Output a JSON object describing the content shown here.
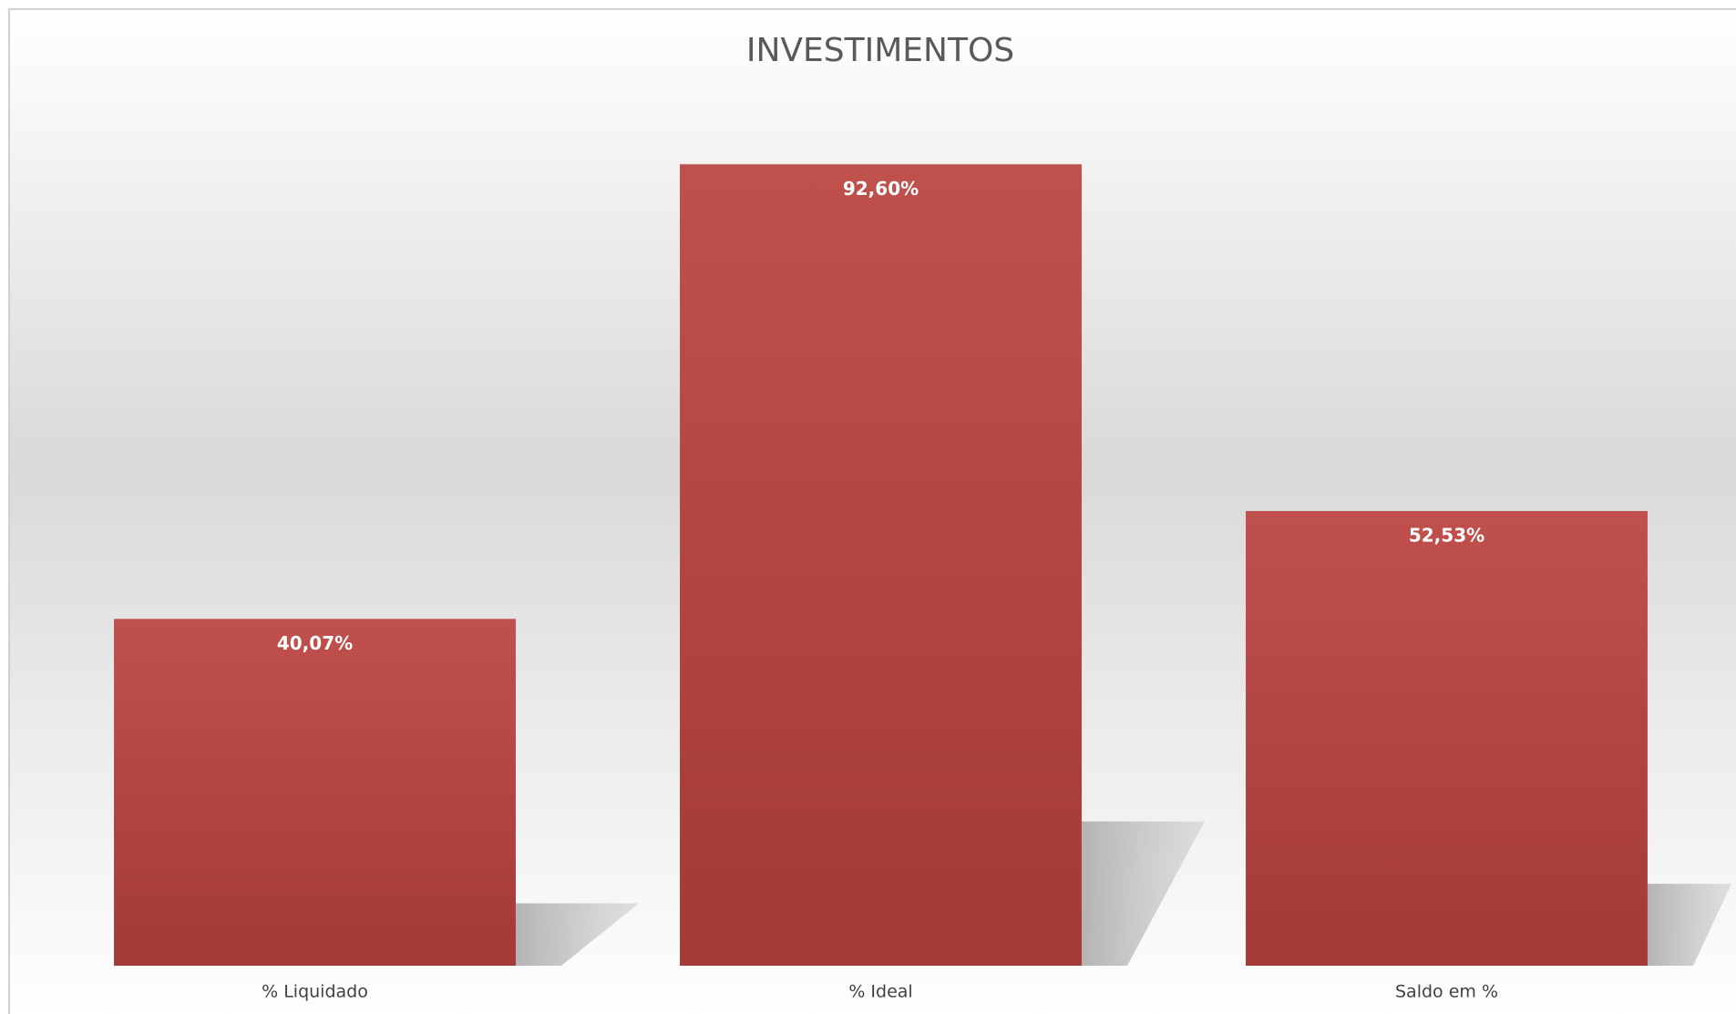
{
  "chart_data": {
    "type": "bar",
    "title": "INVESTIMENTOS",
    "categories": [
      "% Liquidado",
      "% Ideal",
      "Saldo em %"
    ],
    "values": [
      40.07,
      92.6,
      52.53
    ],
    "value_labels": [
      "40,07%",
      "92,60%",
      "52,53%"
    ],
    "color": "#b0403d",
    "ylim": [
      0,
      100
    ]
  }
}
